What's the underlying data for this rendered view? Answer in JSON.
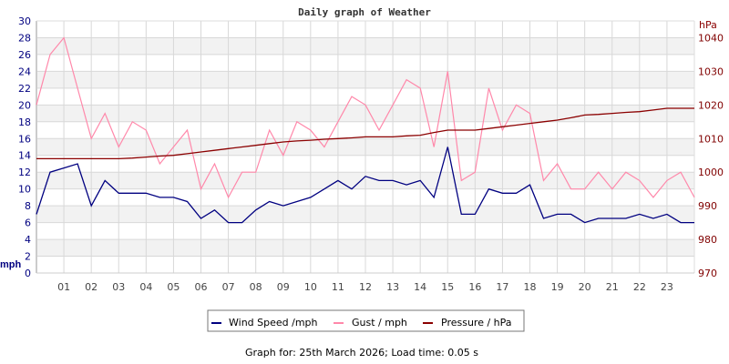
{
  "title": "Daily graph of Weather",
  "footer": "Graph for: 25th March 2026; Load time: 0.05 s",
  "chart_data": {
    "type": "line",
    "title": "Daily graph of Weather",
    "xlim": [
      0,
      24
    ],
    "x_tick_labels": [
      "01",
      "02",
      "03",
      "04",
      "05",
      "06",
      "07",
      "08",
      "09",
      "10",
      "11",
      "12",
      "13",
      "14",
      "15",
      "16",
      "17",
      "18",
      "19",
      "20",
      "21",
      "22",
      "23"
    ],
    "left_axis": {
      "label": "mph",
      "ylim": [
        0,
        30
      ],
      "ticks": [
        0,
        2,
        4,
        6,
        8,
        10,
        12,
        14,
        16,
        18,
        20,
        22,
        24,
        26,
        28,
        30
      ],
      "color": "#000080"
    },
    "right_axis": {
      "label": "hPa",
      "ylim": [
        970,
        1045
      ],
      "ticks": [
        970,
        980,
        990,
        1000,
        1010,
        1020,
        1030,
        1040
      ],
      "color": "#800000"
    },
    "grid": true,
    "legend_placement": "bottom",
    "x": [
      0,
      0.5,
      1,
      1.5,
      2,
      2.5,
      3,
      3.5,
      4,
      4.5,
      5,
      5.5,
      6,
      6.5,
      7,
      7.5,
      8,
      8.5,
      9,
      9.5,
      10,
      10.5,
      11,
      11.5,
      12,
      12.5,
      13,
      13.5,
      14,
      14.5,
      15,
      15.5,
      16,
      16.5,
      17,
      17.5,
      18,
      18.5,
      19,
      19.5,
      20,
      20.5,
      21,
      21.5,
      22,
      22.5,
      23,
      23.5,
      24
    ],
    "series": [
      {
        "name": "Wind Speed /mph",
        "axis": "left",
        "color": "#000080",
        "values": [
          7,
          12,
          12.5,
          13,
          8,
          11,
          9.5,
          9.5,
          9.5,
          9,
          9,
          8.5,
          6.5,
          7.5,
          6,
          6,
          7.5,
          8.5,
          8,
          8.5,
          9,
          10,
          11,
          10,
          11.5,
          11,
          11,
          10.5,
          11,
          9,
          15,
          7,
          7,
          10,
          9.5,
          9.5,
          10.5,
          6.5,
          7,
          7,
          6,
          6.5,
          6.5,
          6.5,
          7,
          6.5,
          7,
          6,
          6
        ]
      },
      {
        "name": "Gust / mph",
        "axis": "left",
        "color": "#ff88aa",
        "values": [
          20,
          26,
          28,
          22,
          16,
          19,
          15,
          18,
          17,
          13,
          15,
          17,
          10,
          13,
          9,
          12,
          12,
          17,
          14,
          18,
          17,
          15,
          18,
          21,
          20,
          17,
          20,
          23,
          22,
          15,
          24,
          11,
          12,
          22,
          17,
          20,
          19,
          11,
          13,
          10,
          10,
          12,
          10,
          12,
          11,
          9,
          11,
          12,
          9
        ]
      },
      {
        "name": "Pressure / hPa",
        "axis": "right",
        "color": "#8b0000",
        "values": [
          1004,
          1004,
          1004,
          1004,
          1004,
          1004,
          1004,
          1004.2,
          1004.5,
          1004.8,
          1005,
          1005.5,
          1006,
          1006.5,
          1007,
          1007.5,
          1008,
          1008.5,
          1009,
          1009.3,
          1009.5,
          1009.8,
          1010,
          1010.2,
          1010.5,
          1010.5,
          1010.5,
          1010.8,
          1011,
          1011.8,
          1012.5,
          1012.5,
          1012.5,
          1013,
          1013.5,
          1014,
          1014.5,
          1015,
          1015.5,
          1016.2,
          1017,
          1017.2,
          1017.5,
          1017.8,
          1018,
          1018.5,
          1019,
          1019,
          1019
        ]
      }
    ]
  }
}
